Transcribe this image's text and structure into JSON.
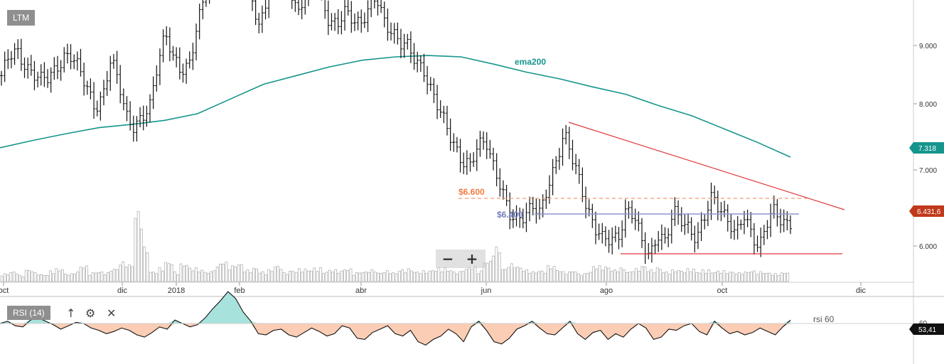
{
  "symbol_label": "LTM",
  "rsi_label": "RSI (14)",
  "icons": {
    "up": "↑",
    "settings": "⚙",
    "close": "✕",
    "zoom_out": "−",
    "zoom_in": "+"
  },
  "colors": {
    "ema": "#15958c",
    "trend": "#e0393e",
    "support": "#8d95cf",
    "resistance": "#f59a6d",
    "rsi_up_fill": "#a8e2dc",
    "rsi_down_fill": "#fbcdb4",
    "price_badge": "#c0391b"
  },
  "chart_data": [
    {
      "type": "ohlc",
      "x_ticks": [
        "oct",
        "dic",
        "2018",
        "feb",
        "abr",
        "jun",
        "ago",
        "oct",
        "dic"
      ],
      "y_ticks": [
        "6.000",
        "7.000",
        "8.000",
        "9.000"
      ],
      "ylim": [
        5.4,
        10.0
      ],
      "price_series": [
        8.55,
        8.8,
        8.9,
        8.75,
        8.6,
        8.45,
        8.5,
        8.7,
        8.85,
        8.8,
        8.6,
        8.4,
        8.1,
        8.2,
        8.75,
        8.5,
        8.0,
        7.75,
        7.85,
        8.1,
        8.8,
        9.2,
        8.75,
        8.6,
        8.75,
        9.3,
        9.7,
        10.2,
        10.6,
        10.9,
        10.8,
        10.5,
        9.8,
        9.3,
        9.7,
        10.2,
        10.1,
        9.9,
        9.45,
        9.75,
        10.1,
        9.75,
        9.35,
        9.25,
        9.5,
        9.45,
        9.35,
        9.5,
        9.7,
        9.4,
        9.25,
        9.0,
        8.95,
        8.8,
        8.7,
        8.3,
        8.0,
        7.8,
        7.55,
        7.25,
        7.15,
        7.5,
        7.65,
        7.2,
        6.8,
        6.45,
        6.45,
        6.5,
        6.55,
        6.45,
        6.95,
        7.3,
        7.65,
        7.3,
        7.0,
        6.6,
        6.25,
        6.05,
        6.1,
        6.2,
        6.55,
        6.4,
        6.05,
        5.9,
        6.2,
        6.0,
        6.5,
        6.45,
        6.3,
        6.05,
        6.4,
        6.8,
        6.6,
        6.35,
        6.1,
        6.5,
        6.25,
        5.95,
        6.3,
        6.55,
        6.4,
        6.35
      ],
      "volume": [
        0.08,
        0.1,
        0.06,
        0.12,
        0.09,
        0.07,
        0.11,
        0.13,
        0.08,
        0.1,
        0.16,
        0.09,
        0.1,
        0.09,
        0.13,
        0.2,
        0.17,
        0.72,
        0.35,
        0.1,
        0.14,
        0.2,
        0.1,
        0.18,
        0.14,
        0.12,
        0.1,
        0.15,
        0.2,
        0.16,
        0.18,
        0.12,
        0.14,
        0.1,
        0.12,
        0.16,
        0.09,
        0.11,
        0.13,
        0.12,
        0.14,
        0.1,
        0.12,
        0.11,
        0.13,
        0.09,
        0.1,
        0.12,
        0.09,
        0.11,
        0.09,
        0.12,
        0.13,
        0.1,
        0.11,
        0.12,
        0.14,
        0.12,
        0.1,
        0.13,
        0.15,
        0.11,
        0.21,
        0.35,
        0.13,
        0.18,
        0.15,
        0.12,
        0.1,
        0.11,
        0.16,
        0.12,
        0.1,
        0.11,
        0.08,
        0.1,
        0.16,
        0.15,
        0.12,
        0.14,
        0.1,
        0.13,
        0.16,
        0.12,
        0.14,
        0.1,
        0.12,
        0.11,
        0.13,
        0.1,
        0.12,
        0.1,
        0.11,
        0.1,
        0.09,
        0.1,
        0.11,
        0.1,
        0.09,
        0.08,
        0.09,
        0.1
      ],
      "ema200": [
        7.47,
        7.58,
        7.68,
        7.77,
        7.82,
        7.88,
        7.98,
        8.2,
        8.42,
        8.55,
        8.68,
        8.78,
        8.83,
        8.85,
        8.83,
        8.72,
        8.6,
        8.5,
        8.38,
        8.27,
        8.1,
        7.95,
        7.75,
        7.55,
        7.33
      ],
      "ema_label": "ema200",
      "ema_last_value": "7.318",
      "last_price": "6.431,6",
      "trendline_label": "",
      "resistance_level": 6.6,
      "resistance_label": "$6.600",
      "support_level": 6.4,
      "support_label": "$6.400",
      "low_level": 5.86
    },
    {
      "type": "line",
      "name": "RSI (14)",
      "ylim": [
        20,
        80
      ],
      "y_ticks": [
        "60"
      ],
      "reference_level": 50,
      "level_label": "rsi 60",
      "last_value": "53,41",
      "values": [
        50,
        52,
        48,
        47,
        53,
        55,
        52,
        49,
        45,
        48,
        51,
        50,
        46,
        44,
        41,
        43,
        46,
        44,
        40,
        38,
        42,
        47,
        45,
        53,
        50,
        47,
        49,
        55,
        63,
        70,
        78,
        72,
        60,
        52,
        41,
        40,
        44,
        45,
        40,
        38,
        42,
        46,
        43,
        39,
        41,
        48,
        46,
        37,
        36,
        42,
        45,
        48,
        41,
        39,
        44,
        34,
        31,
        36,
        39,
        45,
        41,
        34,
        47,
        52,
        44,
        34,
        32,
        37,
        45,
        48,
        52,
        46,
        41,
        40,
        46,
        52,
        41,
        36,
        42,
        44,
        36,
        41,
        38,
        45,
        50,
        46,
        36,
        38,
        45,
        44,
        48,
        50,
        43,
        40,
        52,
        46,
        41,
        43,
        40,
        42,
        46,
        43,
        40,
        47,
        53
      ]
    }
  ]
}
